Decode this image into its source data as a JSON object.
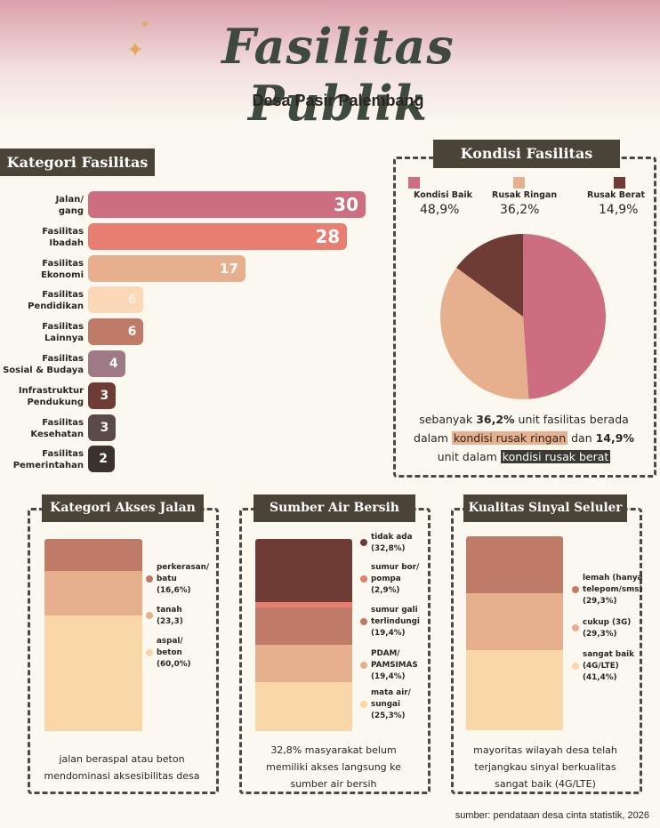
{
  "header": {
    "title": "Fasilitas Publik",
    "subtitle": "Desa Pasir Palembang"
  },
  "colors": {
    "background": "#fbf9ef",
    "dark_label": "#4a4438",
    "palette": [
      "#cc6e80",
      "#e87d72",
      "#e6b08f",
      "#fdd8b7",
      "#bf7a68",
      "#9e7a86",
      "#6e3c35",
      "#5c4a46",
      "#3b322d"
    ]
  },
  "kategori": {
    "heading": "Kategori Fasilitas",
    "chart_data": {
      "type": "bar",
      "orientation": "horizontal",
      "categories": [
        "Jalan/ gang",
        "Fasilitas Ibadah",
        "Fasilitas Ekonomi",
        "Fasilitas Pendidikan",
        "Fasilitas Lainnya",
        "Fasilitas Sosial & Budaya",
        "Infrastruktur Pendukung",
        "Fasilitas Kesehatan",
        "Fasilitas Pemerintahan"
      ],
      "labels_multiline": [
        [
          "Jalan/",
          "gang"
        ],
        [
          "Fasilitas",
          "Ibadah"
        ],
        [
          "Fasilitas",
          "Ekonomi"
        ],
        [
          "Fasilitas",
          "Pendidikan"
        ],
        [
          "Fasilitas",
          "Lainnya"
        ],
        [
          "Fasilitas",
          "Sosial & Budaya"
        ],
        [
          "Infrastruktur",
          "Pendukung"
        ],
        [
          "Fasilitas",
          "Kesehatan"
        ],
        [
          "Fasilitas",
          "Pemerintahan"
        ]
      ],
      "values": [
        30,
        28,
        17,
        6,
        6,
        4,
        3,
        3,
        2
      ],
      "colors": [
        "#cc6e80",
        "#e87d72",
        "#e6b08f",
        "#fdd8b7",
        "#bf7a68",
        "#9e7a86",
        "#6e3c35",
        "#5c4a46",
        "#3b322d"
      ]
    }
  },
  "kondisi": {
    "heading": "Kondisi Fasilitas",
    "chart_data": {
      "type": "pie",
      "series": [
        {
          "name": "Kondisi Baik",
          "value": 48.9,
          "label": "48,9%",
          "color": "#cc6e80"
        },
        {
          "name": "Rusak Ringan",
          "value": 36.2,
          "label": "36,2%",
          "color": "#e6b08f"
        },
        {
          "name": "Rusak Berat",
          "value": 14.9,
          "label": "14,9%",
          "color": "#6e3c35"
        }
      ]
    },
    "summary": {
      "p1": "sebanyak ",
      "b1": "36,2%",
      "p2": " unit fasilitas berada",
      "p3": "dalam ",
      "h1": "kondisi rusak ringan",
      "p4": " dan ",
      "b2": "14,9%",
      "p5": "unit dalam ",
      "h2": "kondisi rusak berat"
    }
  },
  "akses": {
    "heading": "Kategori Akses Jalan",
    "chart_data": {
      "type": "bar",
      "stacked": true,
      "series": [
        {
          "name": "perkerasan/ batu",
          "lines": [
            "perkerasan/",
            "batu",
            "(16,6%)"
          ],
          "value": 16.6,
          "color": "#bf7a68"
        },
        {
          "name": "tanah",
          "lines": [
            "tanah",
            "(23,3)"
          ],
          "value": 23.3,
          "color": "#e6b08f"
        },
        {
          "name": "aspal/ beton",
          "lines": [
            "aspal/",
            "beton",
            "(60,0%)"
          ],
          "value": 60.0,
          "color": "#f9d7a9"
        }
      ]
    },
    "summary": [
      "jalan beraspal atau beton",
      "mendominasi aksesibilitas desa"
    ]
  },
  "air": {
    "heading": "Sumber Air Bersih",
    "chart_data": {
      "type": "bar",
      "stacked": true,
      "series": [
        {
          "name": "tidak ada",
          "lines": [
            "tidak ada",
            "(32,8%)"
          ],
          "value": 32.8,
          "color": "#6e3c35"
        },
        {
          "name": "sumur bor/ pompa",
          "lines": [
            "sumur bor/",
            "pompa",
            "(2,9%)"
          ],
          "value": 2.9,
          "color": "#e87d72"
        },
        {
          "name": "sumur gali terlindungi",
          "lines": [
            "sumur gali",
            "terlindungi",
            "(19,4%)"
          ],
          "value": 19.4,
          "color": "#bf7a68"
        },
        {
          "name": "PDAM/ PAMSIMAS",
          "lines": [
            "PDAM/",
            "PAMSIMAS",
            "(19,4%)"
          ],
          "value": 19.4,
          "color": "#e6b08f"
        },
        {
          "name": "mata air/ sungai",
          "lines": [
            "mata air/",
            "sungai",
            "(25,3%)"
          ],
          "value": 25.3,
          "color": "#f9d7a9"
        }
      ]
    },
    "summary": [
      "32,8% masyarakat belum",
      "memiliki akses langsung ke",
      "sumber air bersih"
    ]
  },
  "sinyal": {
    "heading": "Kualitas Sinyal Seluler",
    "chart_data": {
      "type": "bar",
      "stacked": true,
      "series": [
        {
          "name": "lemah (hanya telepom/sms)",
          "lines": [
            "lemah (hanya",
            "telepom/sms)",
            "(29,3%)"
          ],
          "value": 29.3,
          "color": "#bf7a68"
        },
        {
          "name": "cukup (3G)",
          "lines": [
            "cukup (3G)",
            "(29,3%)"
          ],
          "value": 29.3,
          "color": "#e6b08f"
        },
        {
          "name": "sangat baik (4G/LTE)",
          "lines": [
            "sangat baik",
            "(4G/LTE)",
            "(41,4%)"
          ],
          "value": 41.4,
          "color": "#f9d7a9"
        }
      ]
    },
    "summary": [
      "mayoritas wilayah desa telah",
      "terjangkau sinyal berkualitas",
      "sangat baik (4G/LTE)"
    ]
  },
  "source": "sumber: pendataan desa cinta statistik, 2026"
}
